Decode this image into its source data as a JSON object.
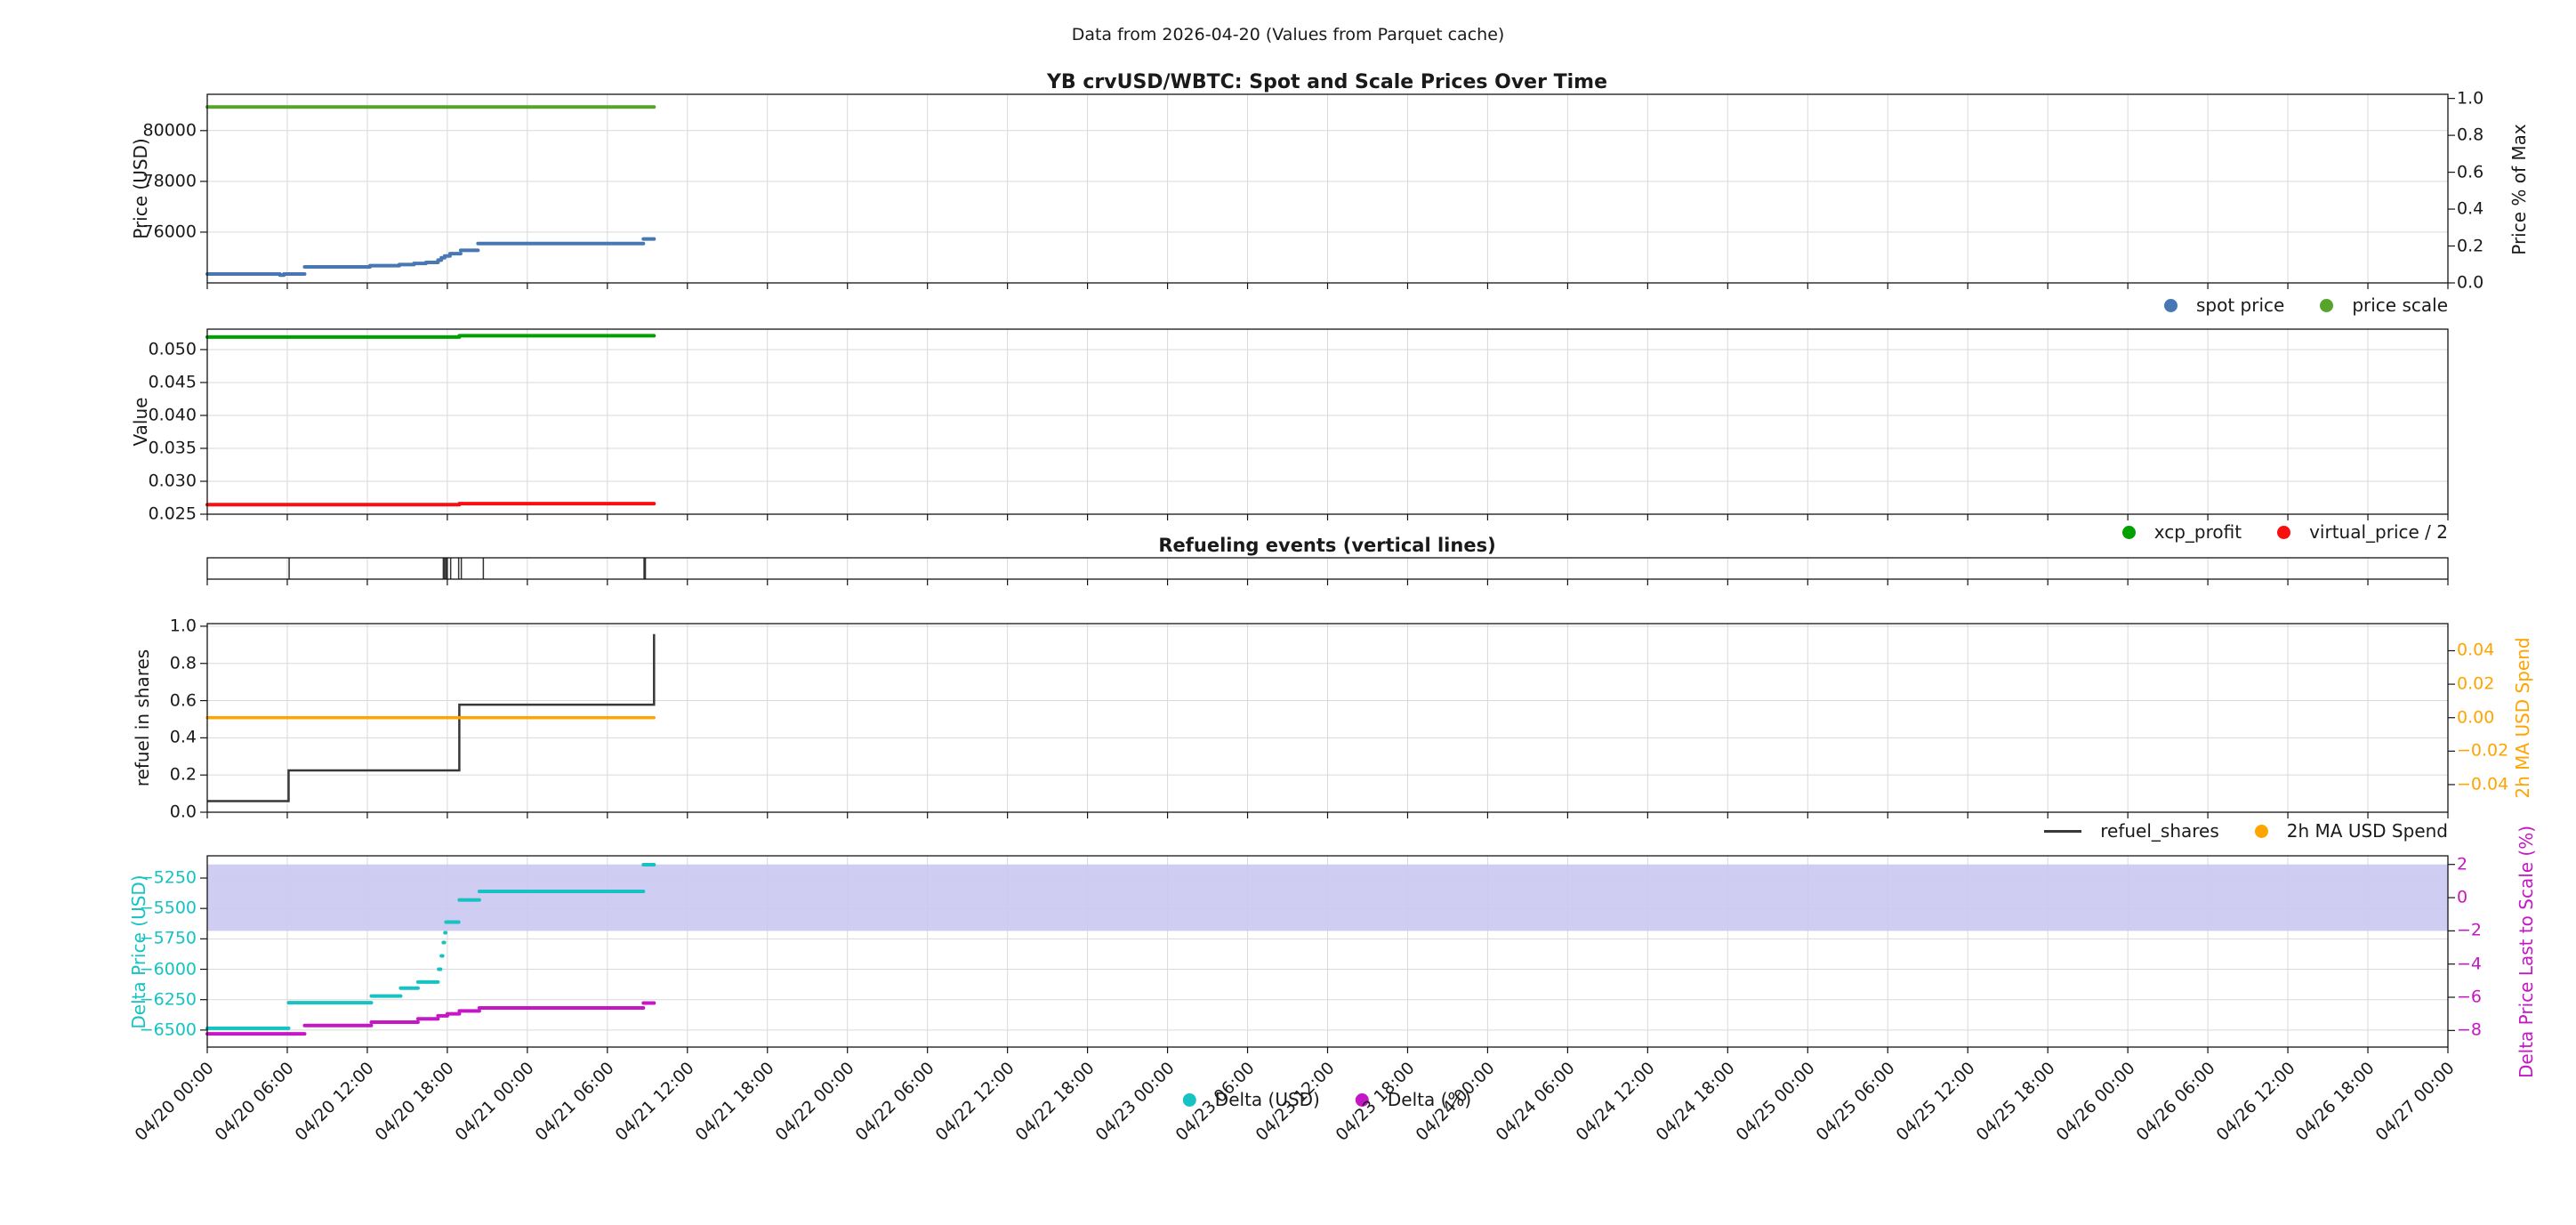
{
  "header": {
    "suptitle": "Data from 2026-04-20 (Values from Parquet cache)",
    "title": "YB crvUSD/WBTC: Spot and Scale Prices Over Time"
  },
  "colors": {
    "spot_price": "#4878b4",
    "price_scale": "#56a42c",
    "xcp_profit": "#00a000",
    "virtual_price": "#fa0f0f",
    "refuel_shares": "#383838",
    "usd_spend": "#ffa400",
    "delta_usd": "#16c2c2",
    "delta_pct": "#c517c5",
    "band": "#cac8f0",
    "grid": "#d9d9d9",
    "spine": "#141414",
    "event_line": "#333333",
    "text": "#1a1a1a"
  },
  "x_axis": {
    "total_hours": 168,
    "hours_per_tick": 6,
    "tick_labels": [
      "04/20 00:00",
      "04/20 06:00",
      "04/20 12:00",
      "04/20 18:00",
      "04/21 00:00",
      "04/21 06:00",
      "04/21 12:00",
      "04/21 18:00",
      "04/22 00:00",
      "04/22 06:00",
      "04/22 12:00",
      "04/22 18:00",
      "04/23 00:00",
      "04/23 06:00",
      "04/23 12:00",
      "04/23 18:00",
      "04/24 00:00",
      "04/24 06:00",
      "04/24 12:00",
      "04/24 18:00",
      "04/25 00:00",
      "04/25 06:00",
      "04/25 12:00",
      "04/25 18:00",
      "04/26 00:00",
      "04/26 06:00",
      "04/26 12:00",
      "04/26 18:00",
      "04/27 00:00"
    ]
  },
  "chart_data": [
    {
      "id": "prices",
      "type": "scatter",
      "ylabel_left": "Price (USD)",
      "ylim_left": [
        74000,
        81430
      ],
      "yticks_left": {
        "values": [
          76000,
          78000,
          80000
        ],
        "labels": [
          "76000",
          "78000",
          "80000"
        ]
      },
      "ylabel_right": "Price % of Max",
      "ylim_right": [
        0,
        1.0224
      ],
      "yticks_right": {
        "values": [
          0.0,
          0.2,
          0.4,
          0.6,
          0.8,
          1.0
        ],
        "labels": [
          "0.0",
          "0.2",
          "0.4",
          "0.6",
          "0.8",
          "1.0"
        ]
      },
      "series": [
        {
          "name": "spot price",
          "color": "spot_price",
          "axis": "left",
          "style": "segments",
          "width": 4,
          "segments": [
            [
              0,
              5.45,
              74350
            ],
            [
              5.45,
              5.75,
              74305
            ],
            [
              5.75,
              7.3,
              74350
            ],
            [
              7.3,
              12.2,
              74630
            ],
            [
              12.2,
              14.4,
              74680
            ],
            [
              14.4,
              15.5,
              74725
            ],
            [
              15.5,
              16.4,
              74765
            ],
            [
              16.4,
              17.3,
              74805
            ],
            [
              17.3,
              17.55,
              74900
            ],
            [
              17.55,
              17.8,
              74990
            ],
            [
              17.8,
              18.2,
              75060
            ],
            [
              18.2,
              19.0,
              75150
            ],
            [
              19.0,
              20.3,
              75285
            ],
            [
              20.3,
              32.7,
              75550
            ],
            [
              32.7,
              33.5,
              75730
            ]
          ]
        },
        {
          "name": "price scale",
          "color": "price_scale",
          "axis": "left",
          "style": "segments",
          "width": 4,
          "segments": [
            [
              0,
              33.5,
              80930
            ]
          ]
        }
      ],
      "legend": {
        "items": [
          {
            "label": "spot price",
            "color": "spot_price",
            "marker": "dot"
          },
          {
            "label": "price scale",
            "color": "price_scale",
            "marker": "dot"
          }
        ]
      }
    },
    {
      "id": "value",
      "type": "scatter",
      "ylabel_left": "Value",
      "ylim_left": [
        0.025,
        0.0531
      ],
      "yticks_left": {
        "values": [
          0.025,
          0.03,
          0.035,
          0.04,
          0.045,
          0.05
        ],
        "labels": [
          "0.025",
          "0.030",
          "0.035",
          "0.040",
          "0.045",
          "0.050"
        ]
      },
      "series": [
        {
          "name": "xcp_profit",
          "color": "xcp_profit",
          "axis": "left",
          "style": "segments",
          "width": 4,
          "segments": [
            [
              0,
              18.9,
              0.0519
            ],
            [
              18.9,
              33.5,
              0.0521
            ]
          ]
        },
        {
          "name": "virtual_price / 2",
          "color": "virtual_price",
          "axis": "left",
          "style": "segments",
          "width": 4,
          "segments": [
            [
              0,
              18.9,
              0.02645
            ],
            [
              18.9,
              33.5,
              0.0266
            ]
          ]
        }
      ],
      "legend": {
        "items": [
          {
            "label": "xcp_profit",
            "color": "xcp_profit",
            "marker": "dot"
          },
          {
            "label": "virtual_price / 2",
            "color": "virtual_price",
            "marker": "dot"
          }
        ]
      }
    },
    {
      "id": "refuel-events",
      "type": "events",
      "title": "Refueling events (vertical lines)",
      "events": [
        {
          "t": 6.14,
          "w": 1.5
        },
        {
          "t": 17.75,
          "w": 3
        },
        {
          "t": 17.95,
          "w": 3
        },
        {
          "t": 18.25,
          "w": 1.5
        },
        {
          "t": 18.85,
          "w": 1.5
        },
        {
          "t": 19.05,
          "w": 1.5
        },
        {
          "t": 20.7,
          "w": 1.5
        },
        {
          "t": 32.8,
          "w": 3
        }
      ]
    },
    {
      "id": "refuel",
      "type": "line",
      "ylabel_left": "refuel in shares",
      "ylim_left": [
        0,
        1.014
      ],
      "yticks_left": {
        "values": [
          0.0,
          0.2,
          0.4,
          0.6,
          0.8,
          1.0
        ],
        "labels": [
          "0.0",
          "0.2",
          "0.4",
          "0.6",
          "0.8",
          "1.0"
        ]
      },
      "ylabel_right": "2h MA USD Spend",
      "ylabel_right_color": "usd_spend",
      "ylim_right": [
        -0.0565,
        0.0562
      ],
      "yticks_right": {
        "values": [
          0.04,
          0.02,
          0.0,
          -0.02,
          -0.04
        ],
        "labels": [
          "0.04",
          "0.02",
          "0.00",
          "−0.02",
          "−0.04"
        ]
      },
      "tick_color_right": "usd_spend",
      "series": [
        {
          "name": "refuel_shares",
          "color": "refuel_shares",
          "axis": "left",
          "style": "step",
          "width": 2.5,
          "points": [
            [
              0,
              0.06
            ],
            [
              6.1,
              0.225
            ],
            [
              18.0,
              0.555
            ],
            [
              18.9,
              0.578
            ],
            [
              32.7,
              0.958
            ],
            [
              33.5,
              0.958
            ]
          ]
        },
        {
          "name": "2h MA USD Spend",
          "color": "usd_spend",
          "axis": "right",
          "style": "segments",
          "width": 3.5,
          "segments": [
            [
              0,
              33.5,
              0.0
            ]
          ]
        }
      ],
      "legend": {
        "items": [
          {
            "label": "refuel_shares",
            "color": "refuel_shares",
            "marker": "line"
          },
          {
            "label": "2h MA USD Spend",
            "color": "usd_spend",
            "marker": "dot"
          }
        ]
      }
    },
    {
      "id": "delta",
      "type": "scatter",
      "ylabel_left": "Delta Price (USD)",
      "ylabel_left_color": "delta_usd",
      "ylim_left": [
        -6640,
        -5067
      ],
      "yticks_left": {
        "values": [
          -5250,
          -5500,
          -5750,
          -6000,
          -6250,
          -6500
        ],
        "labels": [
          "−5250",
          "−5500",
          "−5750",
          "−6000",
          "−6250",
          "−6500"
        ]
      },
      "tick_color_left": "delta_usd",
      "ylabel_right": "Delta Price Last to Scale (%)",
      "ylabel_right_color": "delta_pct",
      "ylim_right": [
        -9.0,
        2.52
      ],
      "yticks_right": {
        "values": [
          2,
          0,
          -2,
          -4,
          -6,
          -8
        ],
        "labels": [
          "2",
          "0",
          "−2",
          "−4",
          "−6",
          "−8"
        ]
      },
      "tick_color_right": "delta_pct",
      "band": {
        "axis": "right",
        "from": 2,
        "to": -2,
        "color": "band"
      },
      "series": [
        {
          "name": "Delta (USD)",
          "color": "delta_usd",
          "axis": "left",
          "style": "segments",
          "width": 4,
          "segments": [
            [
              0,
              6.1,
              -6485
            ],
            [
              6.1,
              12.3,
              -6275
            ],
            [
              12.3,
              14.5,
              -6220
            ],
            [
              14.5,
              15.8,
              -6155
            ],
            [
              15.8,
              17.3,
              -6105
            ],
            [
              17.35,
              17.5,
              -6000
            ],
            [
              17.55,
              17.65,
              -5890
            ],
            [
              17.7,
              17.78,
              -5780
            ],
            [
              17.82,
              17.88,
              -5700
            ],
            [
              17.9,
              18.85,
              -5612
            ],
            [
              18.9,
              20.4,
              -5430
            ],
            [
              20.4,
              32.7,
              -5360
            ],
            [
              32.7,
              33.5,
              -5140
            ]
          ]
        },
        {
          "name": "Delta (%)",
          "color": "delta_pct",
          "axis": "left_pct",
          "style": "segments",
          "width": 4,
          "segments": [
            [
              0,
              7.3,
              -8.2
            ],
            [
              7.3,
              12.3,
              -7.7
            ],
            [
              12.3,
              15.8,
              -7.5
            ],
            [
              15.8,
              17.3,
              -7.3
            ],
            [
              17.3,
              18.0,
              -7.12
            ],
            [
              18.0,
              18.9,
              -7.0
            ],
            [
              18.9,
              20.4,
              -6.82
            ],
            [
              20.4,
              32.7,
              -6.64
            ],
            [
              32.7,
              33.5,
              -6.35
            ]
          ]
        }
      ],
      "legend": {
        "items": [
          {
            "label": "Delta (USD)",
            "color": "delta_usd",
            "marker": "dot"
          },
          {
            "label": "Delta (%)",
            "color": "delta_pct",
            "marker": "dot"
          }
        ]
      }
    }
  ]
}
